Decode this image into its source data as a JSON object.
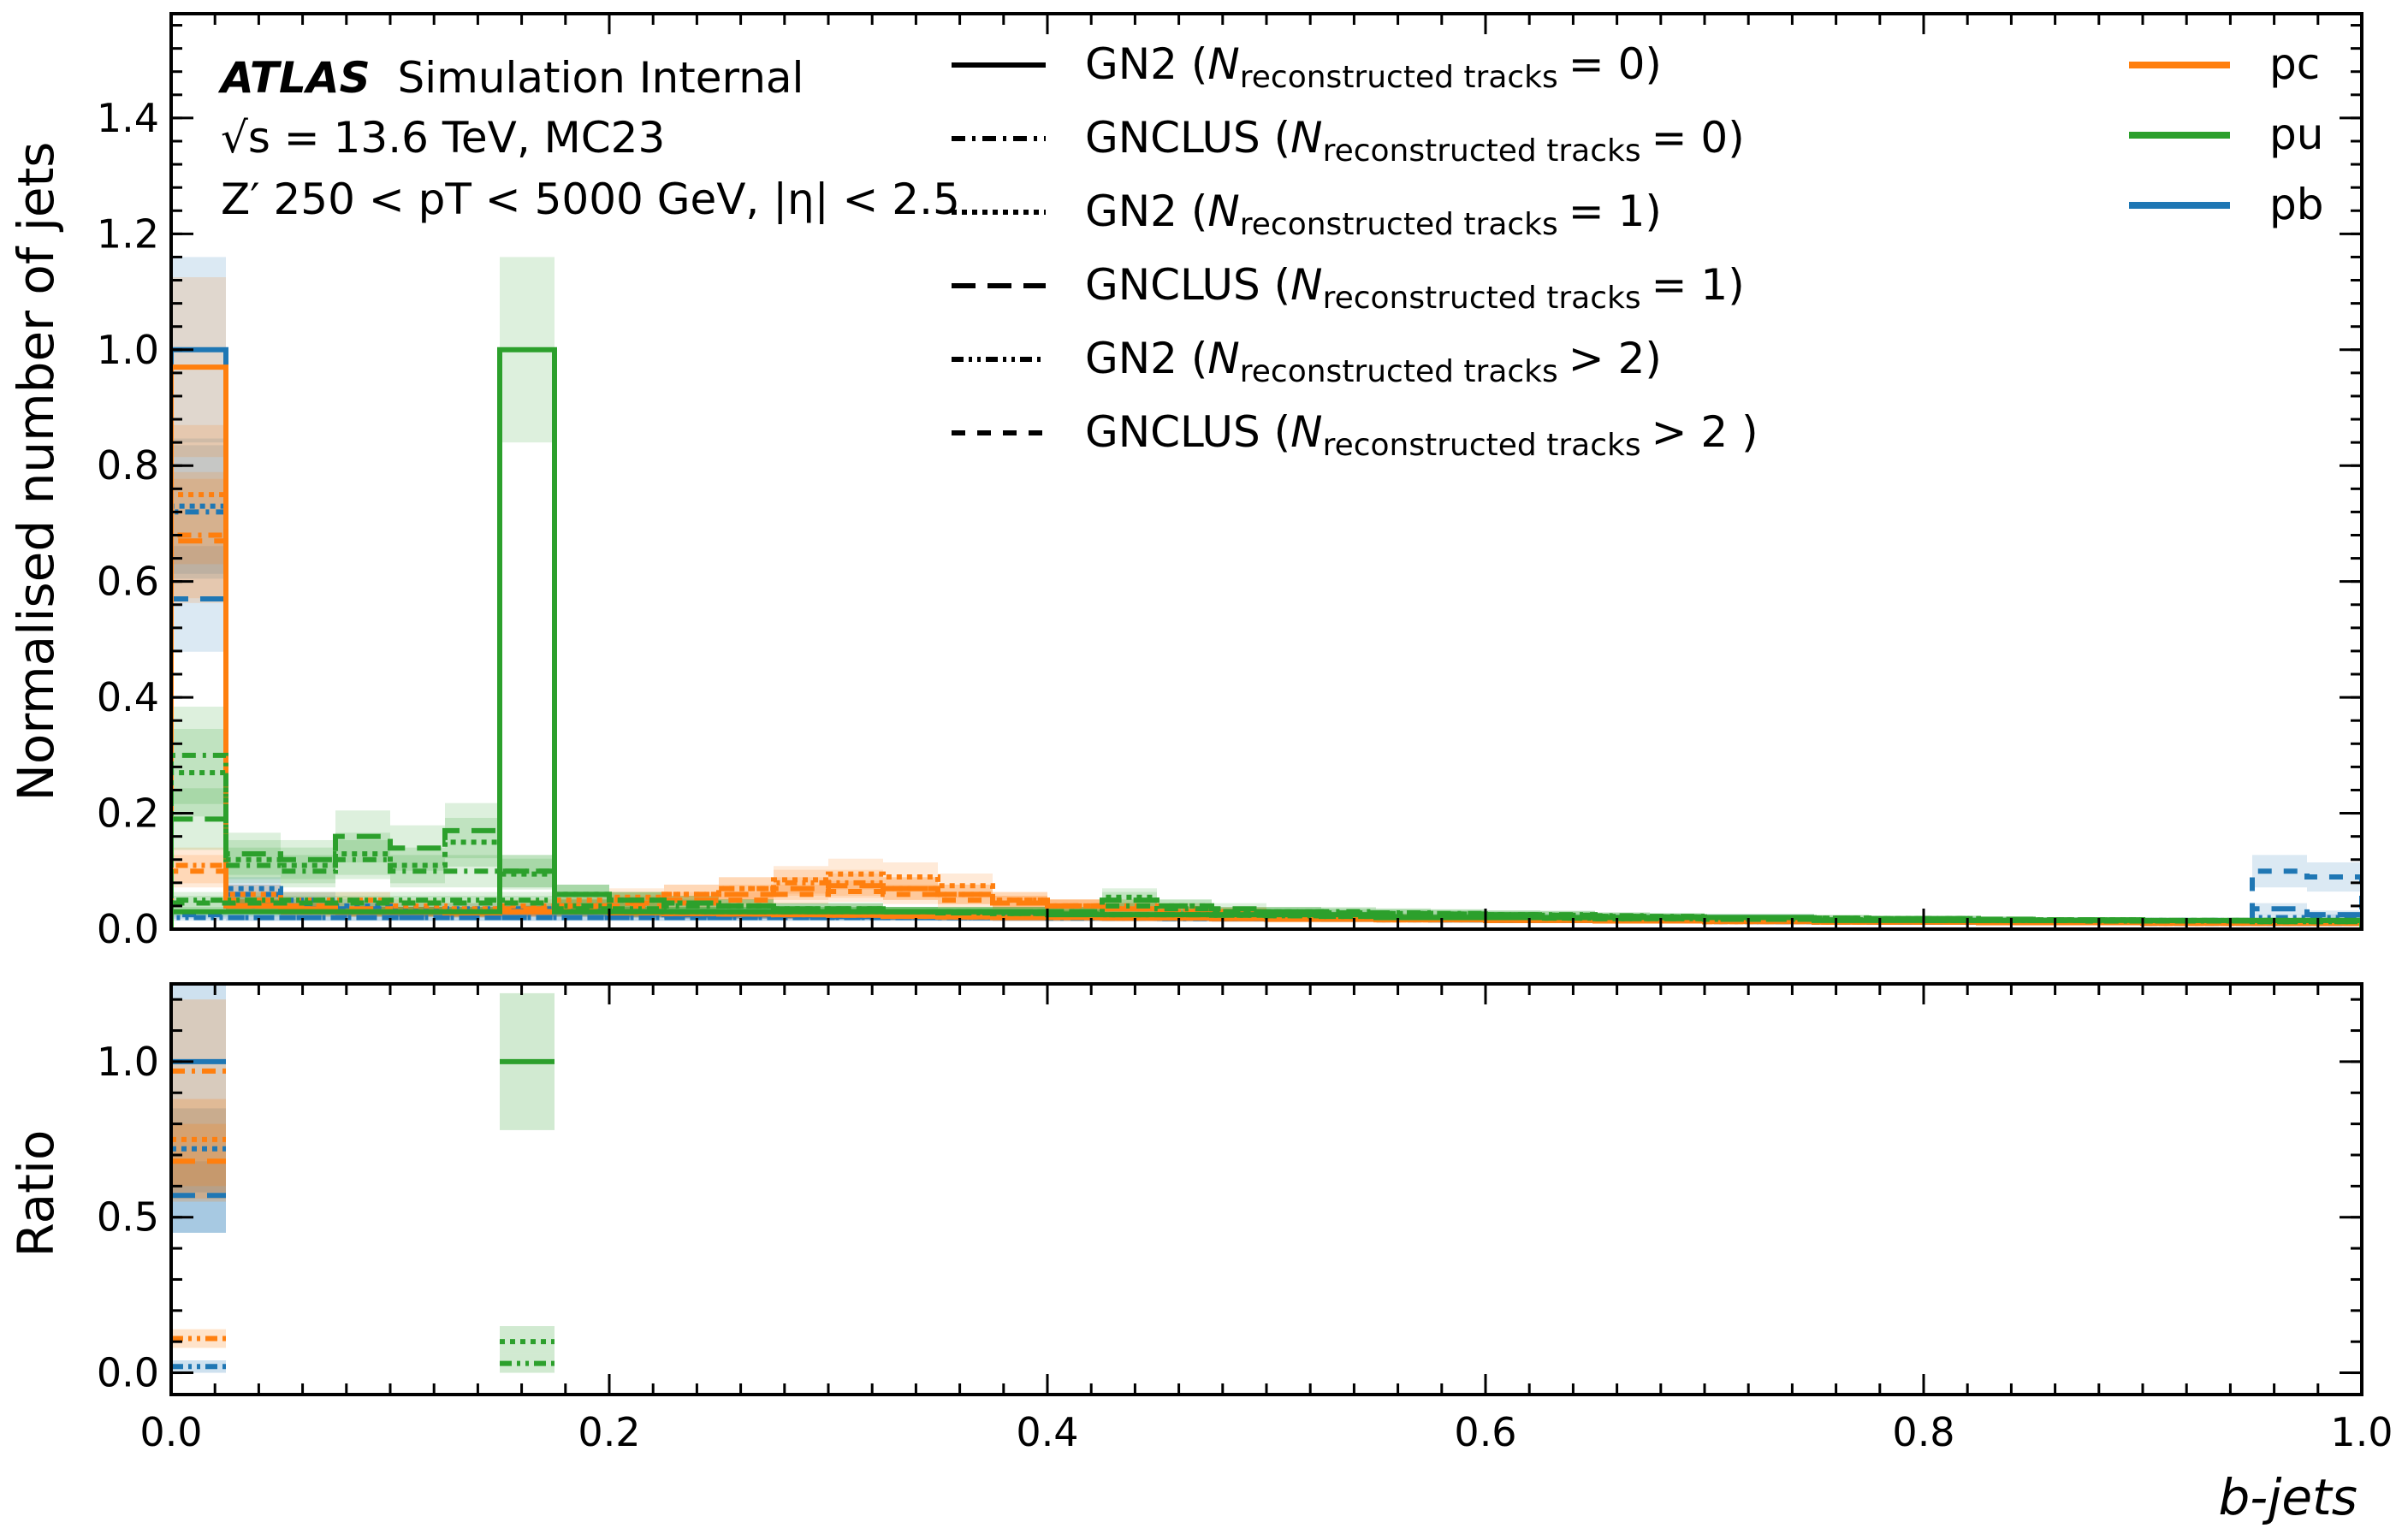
{
  "chart_data": {
    "type": "histogram",
    "annotation": {
      "atlas": "ATLAS",
      "status": "Simulation Internal",
      "line2": "√s = 13.6 TeV, MC23",
      "line3": "Z′ 250 < pT < 5000 GeV, |η| < 2.5"
    },
    "xlabel": "b-jets",
    "top_ylabel": "Normalised number of jets",
    "bottom_ylabel": "Ratio",
    "xlim": [
      0.0,
      1.0
    ],
    "top_ylim": [
      0.0,
      1.58
    ],
    "bottom_ylim": [
      -0.07,
      1.25
    ],
    "x_ticks": [
      "0.0",
      "0.2",
      "0.4",
      "0.6",
      "0.8",
      "1.0"
    ],
    "top_y_ticks": [
      "0.0",
      "0.2",
      "0.4",
      "0.6",
      "0.8",
      "1.0",
      "1.2",
      "1.4"
    ],
    "bottom_y_ticks": [
      "0.0",
      "0.5",
      "1.0"
    ],
    "bin_width": 0.025,
    "style_legend": [
      {
        "label": "GN2",
        "relation": "= 0",
        "style": "solid"
      },
      {
        "label": "GNCLUS",
        "relation": "= 0",
        "style": "dashdot"
      },
      {
        "label": "GN2",
        "relation": "= 1",
        "style": "dotted"
      },
      {
        "label": "GNCLUS",
        "relation": "= 1",
        "style": "longdash"
      },
      {
        "label": "GN2",
        "relation": "> 2",
        "style": "dashdotdot"
      },
      {
        "label": "GNCLUS",
        "relation": "> 2 )",
        "style": "dash"
      }
    ],
    "legend_sub": "reconstructed tracks",
    "legend_n": "N",
    "color_legend": [
      {
        "label": "pc",
        "color": "#ff7f0e"
      },
      {
        "label": "pu",
        "color": "#2ca02c"
      },
      {
        "label": "pb",
        "color": "#1f77b4"
      }
    ],
    "series": [
      {
        "class": "pb",
        "style": "solid",
        "color": "#1f77b4",
        "bands": true,
        "values": [
          1.0,
          0.04,
          0.035,
          0.03,
          0.03,
          0.03,
          0.032,
          0.03,
          0.028,
          0.025,
          0.025,
          0.024,
          0.022,
          0.022,
          0.021,
          0.02,
          0.02,
          0.02,
          0.019,
          0.018,
          0.018,
          0.017,
          0.017,
          0.016,
          0.015,
          0.015,
          0.014,
          0.014,
          0.014,
          0.013,
          0.013,
          0.012,
          0.012,
          0.012,
          0.011,
          0.011,
          0.011,
          0.011,
          0.01,
          0.01
        ]
      },
      {
        "class": "pb",
        "style": "dashdot",
        "color": "#1f77b4",
        "bands": true,
        "values": [
          0.72,
          0.04,
          0.035,
          0.03,
          0.03,
          0.028,
          0.03,
          0.03,
          0.028,
          0.025,
          0.025,
          0.024,
          0.022,
          0.021,
          0.02,
          0.02,
          0.019,
          0.019,
          0.018,
          0.018,
          0.017,
          0.017,
          0.016,
          0.016,
          0.015,
          0.015,
          0.014,
          0.014,
          0.013,
          0.013,
          0.012,
          0.012,
          0.012,
          0.011,
          0.011,
          0.011,
          0.01,
          0.01,
          0.01,
          0.01
        ]
      },
      {
        "class": "pb",
        "style": "dotted",
        "color": "#1f77b4",
        "bands": true,
        "values": [
          0.73,
          0.07,
          0.05,
          0.04,
          0.035,
          0.035,
          0.035,
          0.035,
          0.03,
          0.028,
          0.028,
          0.026,
          0.025,
          0.024,
          0.023,
          0.022,
          0.021,
          0.02,
          0.02,
          0.019,
          0.018,
          0.018,
          0.017,
          0.017,
          0.016,
          0.016,
          0.015,
          0.015,
          0.015,
          0.014,
          0.014,
          0.013,
          0.013,
          0.013,
          0.013,
          0.012,
          0.012,
          0.012,
          0.012,
          0.012
        ]
      },
      {
        "class": "pb",
        "style": "longdash",
        "color": "#1f77b4",
        "bands": true,
        "values": [
          0.57,
          0.06,
          0.04,
          0.035,
          0.03,
          0.03,
          0.03,
          0.03,
          0.028,
          0.026,
          0.025,
          0.024,
          0.023,
          0.022,
          0.021,
          0.02,
          0.02,
          0.02,
          0.019,
          0.018,
          0.018,
          0.017,
          0.017,
          0.016,
          0.016,
          0.015,
          0.015,
          0.014,
          0.014,
          0.014,
          0.013,
          0.013,
          0.013,
          0.013,
          0.012,
          0.012,
          0.012,
          0.012,
          0.035,
          0.025
        ]
      },
      {
        "class": "pb",
        "style": "dashdotdot",
        "color": "#1f77b4",
        "bands": true,
        "values": [
          0.02,
          0.02,
          0.02,
          0.02,
          0.02,
          0.02,
          0.02,
          0.02,
          0.02,
          0.02,
          0.02,
          0.02,
          0.02,
          0.02,
          0.02,
          0.02,
          0.02,
          0.02,
          0.02,
          0.02,
          0.02,
          0.02,
          0.02,
          0.02,
          0.02,
          0.02,
          0.02,
          0.02,
          0.02,
          0.02,
          0.015,
          0.015,
          0.015,
          0.015,
          0.015,
          0.015,
          0.015,
          0.015,
          0.02,
          0.02
        ]
      },
      {
        "class": "pb",
        "style": "dash",
        "color": "#1f77b4",
        "bands": true,
        "values": [
          0.025,
          0.02,
          0.02,
          0.02,
          0.02,
          0.02,
          0.02,
          0.02,
          0.02,
          0.02,
          0.02,
          0.02,
          0.02,
          0.02,
          0.02,
          0.02,
          0.02,
          0.02,
          0.02,
          0.02,
          0.02,
          0.02,
          0.02,
          0.02,
          0.02,
          0.02,
          0.02,
          0.02,
          0.02,
          0.02,
          0.015,
          0.015,
          0.015,
          0.015,
          0.015,
          0.015,
          0.015,
          0.015,
          0.1,
          0.09
        ]
      },
      {
        "class": "pc",
        "style": "solid",
        "color": "#ff7f0e",
        "bands": true,
        "values": [
          0.97,
          0.04,
          0.035,
          0.03,
          0.03,
          0.028,
          0.03,
          0.03,
          0.028,
          0.027,
          0.026,
          0.025,
          0.024,
          0.022,
          0.021,
          0.02,
          0.02,
          0.019,
          0.019,
          0.018,
          0.017,
          0.017,
          0.016,
          0.016,
          0.015,
          0.015,
          0.014,
          0.014,
          0.013,
          0.013,
          0.012,
          0.012,
          0.012,
          0.011,
          0.011,
          0.011,
          0.01,
          0.01,
          0.01,
          0.01
        ]
      },
      {
        "class": "pc",
        "style": "dashdot",
        "color": "#ff7f0e",
        "bands": true,
        "values": [
          0.68,
          0.04,
          0.035,
          0.03,
          0.03,
          0.028,
          0.03,
          0.03,
          0.028,
          0.027,
          0.026,
          0.025,
          0.024,
          0.022,
          0.021,
          0.02,
          0.02,
          0.019,
          0.019,
          0.018,
          0.017,
          0.017,
          0.016,
          0.016,
          0.015,
          0.015,
          0.014,
          0.014,
          0.013,
          0.013,
          0.012,
          0.012,
          0.012,
          0.011,
          0.011,
          0.011,
          0.01,
          0.01,
          0.01,
          0.01
        ]
      },
      {
        "class": "pc",
        "style": "dotted",
        "color": "#ff7f0e",
        "bands": true,
        "values": [
          0.75,
          0.06,
          0.05,
          0.05,
          0.04,
          0.035,
          0.04,
          0.05,
          0.055,
          0.06,
          0.07,
          0.085,
          0.095,
          0.09,
          0.075,
          0.05,
          0.04,
          0.04,
          0.035,
          0.03,
          0.025,
          0.022,
          0.02,
          0.02,
          0.018,
          0.017,
          0.016,
          0.015,
          0.015,
          0.014,
          0.014,
          0.013,
          0.013,
          0.012,
          0.012,
          0.012,
          0.011,
          0.011,
          0.011,
          0.011
        ]
      },
      {
        "class": "pc",
        "style": "longdash",
        "color": "#ff7f0e",
        "bands": true,
        "values": [
          0.67,
          0.05,
          0.04,
          0.035,
          0.03,
          0.03,
          0.035,
          0.04,
          0.045,
          0.05,
          0.06,
          0.07,
          0.075,
          0.07,
          0.06,
          0.045,
          0.04,
          0.035,
          0.03,
          0.028,
          0.025,
          0.022,
          0.02,
          0.019,
          0.018,
          0.017,
          0.016,
          0.015,
          0.015,
          0.014,
          0.014,
          0.013,
          0.013,
          0.012,
          0.012,
          0.012,
          0.011,
          0.011,
          0.011,
          0.011
        ]
      },
      {
        "class": "pc",
        "style": "dashdotdot",
        "color": "#ff7f0e",
        "bands": true,
        "values": [
          0.11,
          0.04,
          0.03,
          0.03,
          0.03,
          0.03,
          0.03,
          0.04,
          0.05,
          0.06,
          0.07,
          0.08,
          0.08,
          0.07,
          0.06,
          0.05,
          0.04,
          0.035,
          0.03,
          0.028,
          0.025,
          0.022,
          0.02,
          0.019,
          0.018,
          0.017,
          0.016,
          0.015,
          0.015,
          0.014,
          0.014,
          0.013,
          0.013,
          0.012,
          0.012,
          0.012,
          0.011,
          0.011,
          0.011,
          0.011
        ]
      },
      {
        "class": "pc",
        "style": "dash",
        "color": "#ff7f0e",
        "bands": true,
        "values": [
          0.1,
          0.04,
          0.03,
          0.03,
          0.03,
          0.03,
          0.03,
          0.035,
          0.04,
          0.045,
          0.05,
          0.06,
          0.065,
          0.06,
          0.05,
          0.045,
          0.04,
          0.035,
          0.03,
          0.028,
          0.025,
          0.022,
          0.02,
          0.019,
          0.018,
          0.017,
          0.016,
          0.015,
          0.015,
          0.014,
          0.014,
          0.013,
          0.013,
          0.012,
          0.012,
          0.012,
          0.011,
          0.011,
          0.011,
          0.011
        ]
      },
      {
        "class": "pu",
        "style": "solid",
        "color": "#2ca02c",
        "bands": true,
        "values": [
          0.03,
          0.03,
          0.03,
          0.03,
          0.03,
          0.03,
          1.0,
          0.03,
          0.03,
          0.03,
          0.03,
          0.03,
          0.03,
          0.03,
          0.03,
          0.03,
          0.025,
          0.025,
          0.025,
          0.025,
          0.025,
          0.025,
          0.02,
          0.02,
          0.02,
          0.02,
          0.02,
          0.02,
          0.02,
          0.02,
          0.015,
          0.015,
          0.015,
          0.015,
          0.015,
          0.015,
          0.015,
          0.015,
          0.015,
          0.015
        ]
      },
      {
        "class": "pu",
        "style": "dashdot",
        "color": "#2ca02c",
        "bands": true,
        "values": [
          0.3,
          0.11,
          0.1,
          0.12,
          0.1,
          0.1,
          0.1,
          0.06,
          0.05,
          0.04,
          0.04,
          0.035,
          0.035,
          0.03,
          0.03,
          0.03,
          0.03,
          0.04,
          0.035,
          0.03,
          0.03,
          0.03,
          0.028,
          0.027,
          0.025,
          0.025,
          0.023,
          0.022,
          0.02,
          0.02,
          0.019,
          0.018,
          0.018,
          0.017,
          0.016,
          0.016,
          0.015,
          0.015,
          0.015,
          0.015
        ]
      },
      {
        "class": "pu",
        "style": "dotted",
        "color": "#2ca02c",
        "bands": true,
        "values": [
          0.27,
          0.12,
          0.11,
          0.13,
          0.11,
          0.15,
          0.095,
          0.06,
          0.05,
          0.045,
          0.04,
          0.035,
          0.035,
          0.03,
          0.03,
          0.03,
          0.03,
          0.055,
          0.04,
          0.03,
          0.03,
          0.028,
          0.027,
          0.026,
          0.025,
          0.024,
          0.022,
          0.021,
          0.02,
          0.02,
          0.019,
          0.018,
          0.018,
          0.017,
          0.016,
          0.016,
          0.015,
          0.015,
          0.015,
          0.015
        ]
      },
      {
        "class": "pu",
        "style": "longdash",
        "color": "#2ca02c",
        "bands": true,
        "values": [
          0.19,
          0.13,
          0.12,
          0.16,
          0.14,
          0.17,
          0.1,
          0.06,
          0.05,
          0.045,
          0.04,
          0.035,
          0.035,
          0.03,
          0.03,
          0.03,
          0.03,
          0.05,
          0.04,
          0.035,
          0.03,
          0.028,
          0.027,
          0.026,
          0.025,
          0.024,
          0.022,
          0.021,
          0.02,
          0.02,
          0.019,
          0.018,
          0.018,
          0.017,
          0.016,
          0.016,
          0.015,
          0.015,
          0.015,
          0.015
        ]
      },
      {
        "class": "pu",
        "style": "dashdotdot",
        "color": "#2ca02c",
        "bands": true,
        "values": [
          0.05,
          0.05,
          0.05,
          0.05,
          0.05,
          0.05,
          0.05,
          0.04,
          0.035,
          0.03,
          0.03,
          0.03,
          0.03,
          0.03,
          0.028,
          0.027,
          0.026,
          0.025,
          0.025,
          0.024,
          0.023,
          0.022,
          0.021,
          0.02,
          0.02,
          0.019,
          0.018,
          0.018,
          0.017,
          0.017,
          0.016,
          0.016,
          0.015,
          0.015,
          0.015,
          0.014,
          0.014,
          0.014,
          0.013,
          0.013
        ]
      },
      {
        "class": "pu",
        "style": "dash",
        "color": "#2ca02c",
        "bands": true,
        "values": [
          0.045,
          0.045,
          0.045,
          0.045,
          0.045,
          0.045,
          0.045,
          0.035,
          0.03,
          0.03,
          0.03,
          0.03,
          0.03,
          0.03,
          0.028,
          0.027,
          0.026,
          0.025,
          0.025,
          0.024,
          0.023,
          0.022,
          0.021,
          0.02,
          0.02,
          0.019,
          0.018,
          0.018,
          0.017,
          0.017,
          0.016,
          0.016,
          0.015,
          0.015,
          0.015,
          0.014,
          0.014,
          0.014,
          0.013,
          0.013
        ]
      }
    ],
    "ratio": [
      {
        "class": "pb",
        "color": "#1f77b4",
        "x0": 0.0,
        "value": 1.0,
        "band": [
          0.45,
          1.25
        ],
        "style": "solid"
      },
      {
        "class": "pb",
        "color": "#1f77b4",
        "x0": 0.0,
        "value": 0.72,
        "band": [
          0.58,
          0.85
        ],
        "style": "dotted"
      },
      {
        "class": "pb",
        "color": "#1f77b4",
        "x0": 0.0,
        "value": 0.57,
        "band": [
          0.45,
          0.68
        ],
        "style": "longdash"
      },
      {
        "class": "pb",
        "color": "#1f77b4",
        "x0": 0.0,
        "value": 0.02,
        "band": [
          0.0,
          0.04
        ],
        "style": "dashdotdot"
      },
      {
        "class": "pc",
        "color": "#ff7f0e",
        "x0": 0.0,
        "value": 0.97,
        "band": [
          0.55,
          1.2
        ],
        "style": "dashdot"
      },
      {
        "class": "pc",
        "color": "#ff7f0e",
        "x0": 0.0,
        "value": 0.75,
        "band": [
          0.6,
          0.88
        ],
        "style": "dotted"
      },
      {
        "class": "pc",
        "color": "#ff7f0e",
        "x0": 0.0,
        "value": 0.68,
        "band": [
          0.56,
          0.8
        ],
        "style": "longdash"
      },
      {
        "class": "pc",
        "color": "#ff7f0e",
        "x0": 0.0,
        "value": 0.11,
        "band": [
          0.08,
          0.14
        ],
        "style": "dashdotdot"
      },
      {
        "class": "pu",
        "color": "#2ca02c",
        "x0": 0.15,
        "value": 1.0,
        "band": [
          0.78,
          1.22
        ],
        "style": "solid"
      },
      {
        "class": "pu",
        "color": "#2ca02c",
        "x0": 0.15,
        "value": 0.1,
        "band": [
          0.06,
          0.15
        ],
        "style": "dotted"
      },
      {
        "class": "pu",
        "color": "#2ca02c",
        "x0": 0.15,
        "value": 0.03,
        "band": [
          0.0,
          0.06
        ],
        "style": "dashdotdot"
      }
    ]
  }
}
